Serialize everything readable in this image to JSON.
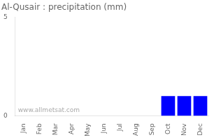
{
  "chart_data": {
    "type": "bar",
    "title": "Al-Qusair : precipitation (mm)",
    "categories": [
      "Jan",
      "Feb",
      "Mar",
      "Apr",
      "May",
      "Jun",
      "Jul",
      "Aug",
      "Sep",
      "Oct",
      "Nov",
      "Dec"
    ],
    "values": [
      0,
      0,
      0,
      0,
      0,
      0,
      0,
      0,
      0,
      1.0,
      1.0,
      1.0
    ],
    "color": "#0000ff",
    "ylim": [
      0,
      5
    ],
    "yticks": [
      0,
      5
    ],
    "grid": false,
    "annotation": "www.allmetsat.com"
  }
}
